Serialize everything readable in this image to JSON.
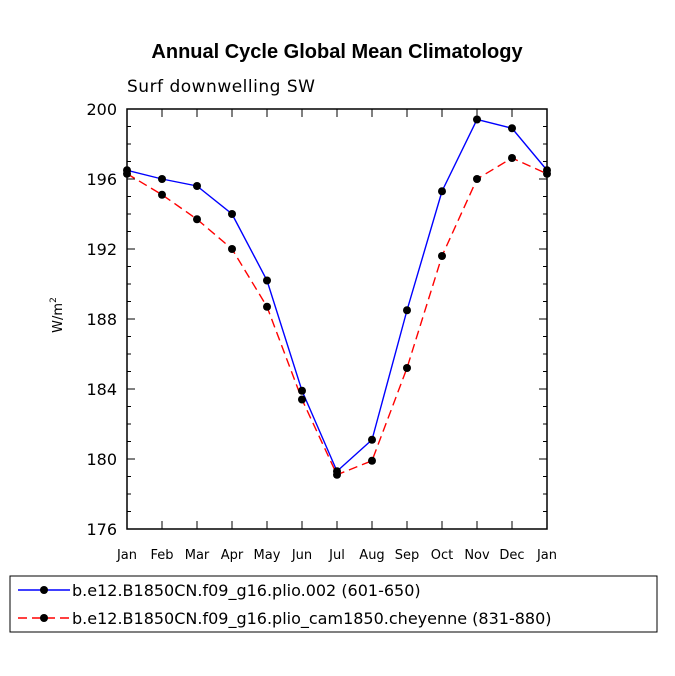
{
  "chart_data": {
    "type": "line",
    "title": "Annual Cycle Global Mean Climatology",
    "subtitle": "Surf downwelling SW",
    "ylabel": "W/m",
    "ylabel_sup": "2",
    "ylim": [
      176,
      200
    ],
    "yticks": [
      176,
      180,
      184,
      188,
      192,
      196,
      200
    ],
    "categories": [
      "Jan",
      "Feb",
      "Mar",
      "Apr",
      "May",
      "Jun",
      "Jul",
      "Aug",
      "Sep",
      "Oct",
      "Nov",
      "Dec",
      "Jan"
    ],
    "series": [
      {
        "name": "b.e12.B1850CN.f09_g16.plio.002 (601-650)",
        "color": "#0000ff",
        "style": "solid",
        "values": [
          196.5,
          196.0,
          195.6,
          194.0,
          190.2,
          183.9,
          179.3,
          181.1,
          188.5,
          195.3,
          199.4,
          198.9,
          196.5
        ]
      },
      {
        "name": "b.e12.B1850CN.f09_g16.plio_cam1850.cheyenne (831-880)",
        "color": "#ff0000",
        "style": "dashed",
        "values": [
          196.3,
          195.1,
          193.7,
          192.0,
          188.7,
          183.4,
          179.1,
          179.9,
          185.2,
          191.6,
          196.0,
          197.2,
          196.3
        ]
      }
    ]
  }
}
